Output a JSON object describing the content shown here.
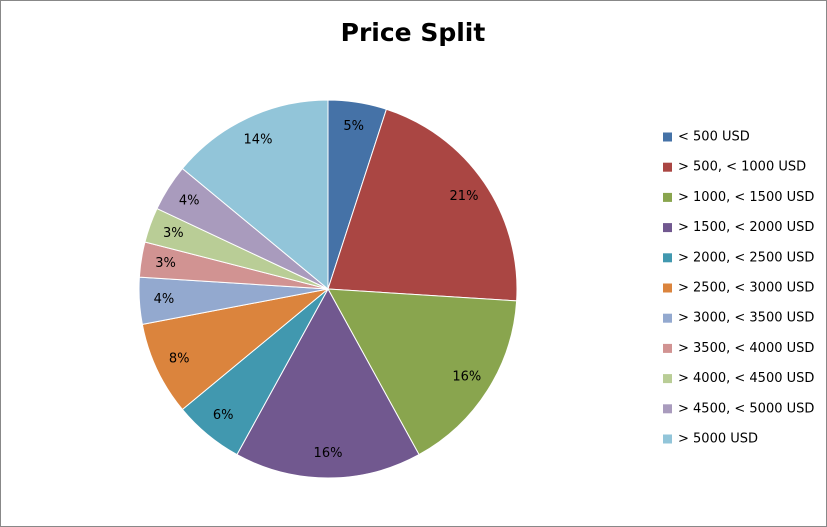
{
  "chart_data": {
    "type": "pie",
    "title": "Price Split",
    "categories": [
      "< 500 USD",
      "> 500, < 1000 USD",
      "> 1000, < 1500 USD",
      "> 1500, < 2000 USD",
      "> 2000, < 2500 USD",
      "> 2500, < 3000 USD",
      "> 3000, < 3500 USD",
      "> 3500, < 4000 USD",
      "> 4000, < 4500 USD",
      "> 4500, < 5000 USD",
      "> 5000 USD"
    ],
    "values": [
      5,
      21,
      16,
      16,
      6,
      8,
      4,
      3,
      3,
      4,
      14
    ],
    "value_labels": [
      "5%",
      "21%",
      "16%",
      "16%",
      "6%",
      "8%",
      "4%",
      "3%",
      "3%",
      "4%",
      "14%"
    ],
    "colors": [
      "#4572A7",
      "#AA4643",
      "#89A54E",
      "#71588F",
      "#4198AF",
      "#DB843D",
      "#93A9CF",
      "#D19392",
      "#B9CD96",
      "#A99BBD",
      "#92C5D9"
    ],
    "legend": "right"
  }
}
